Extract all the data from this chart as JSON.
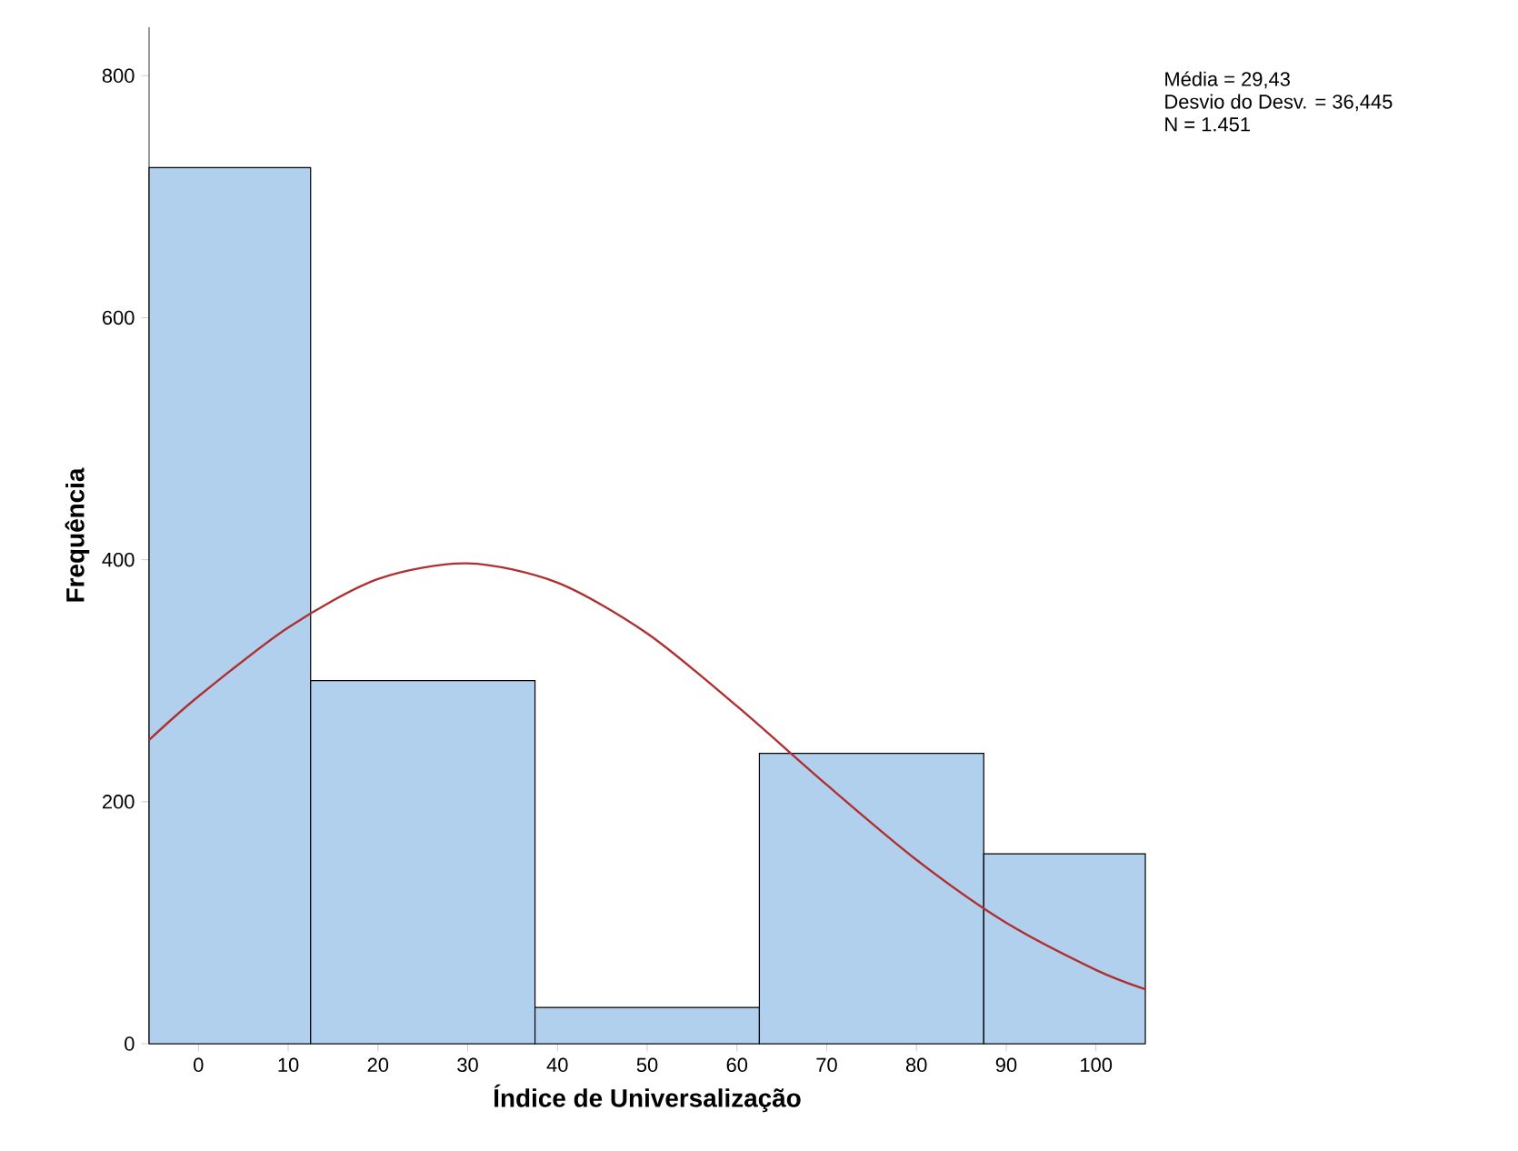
{
  "chart_data": {
    "type": "histogram",
    "xlabel": "Índice de Universalização",
    "ylabel": "Frequência",
    "bins": [
      -5.5,
      12.5,
      37.5,
      62.5,
      87.5,
      105.5
    ],
    "values": [
      724,
      300,
      30,
      240,
      157
    ],
    "color": "#b0d0ee",
    "xlim": [
      -5.5,
      105.5
    ],
    "ylim": [
      0,
      840
    ],
    "xticks": [
      0,
      10,
      20,
      30,
      40,
      50,
      60,
      70,
      80,
      90,
      100
    ],
    "yticks": [
      0,
      200,
      400,
      600,
      800
    ],
    "grid": false,
    "series": [
      {
        "type": "line",
        "color": "#b03030",
        "x": [
          -5.5,
          0,
          10,
          20,
          30,
          40,
          50,
          60,
          70,
          80,
          90,
          100,
          105.5
        ],
        "values": [
          251,
          287,
          344,
          384,
          397,
          381,
          339,
          279,
          214,
          152,
          100,
          61,
          45
        ]
      }
    ],
    "annotations": [
      "Média = 29,43",
      "Desvio do Desv. = 36,445",
      "N = 1.451"
    ]
  }
}
